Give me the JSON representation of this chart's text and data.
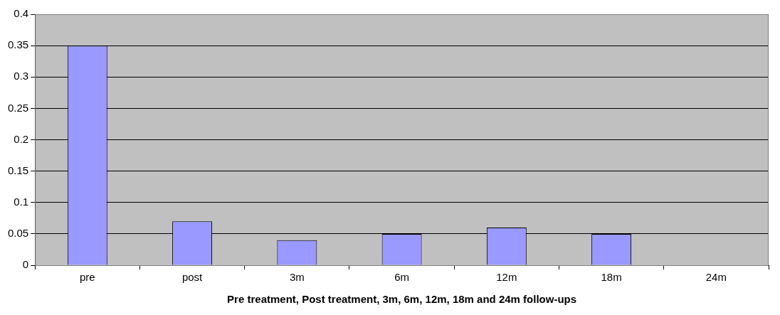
{
  "chart_data": {
    "type": "bar",
    "xlabel": "Pre treatment, Post treatment, 3m, 6m, 12m, 18m and 24m follow-ups",
    "categories": [
      "pre",
      "post",
      "3m",
      "6m",
      "12m",
      "18m",
      "24m"
    ],
    "values": [
      0.35,
      0.07,
      0.04,
      0.05,
      0.06,
      0.05,
      0
    ],
    "color": "#9999ff",
    "ylim": [
      0,
      0.4
    ],
    "yticks": [
      0,
      0.05,
      0.1,
      0.15,
      0.2,
      0.25,
      0.3,
      0.35,
      0.4
    ],
    "grid": "y",
    "legend": false
  }
}
